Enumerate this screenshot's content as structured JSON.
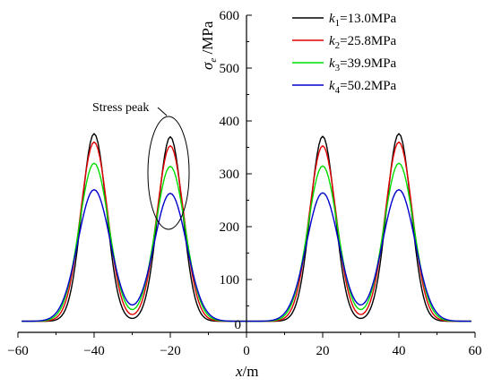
{
  "chart_data": {
    "type": "line",
    "xlabel": "x",
    "xunit": "/m",
    "ylabel": "σ",
    "ylabel_sub": "e",
    "yunit": " /MPa",
    "xlim": [
      -60,
      60
    ],
    "ylim": [
      0,
      600
    ],
    "xticks": [
      -60,
      -40,
      -20,
      0,
      20,
      40,
      60
    ],
    "yticks": [
      100,
      200,
      300,
      400,
      500,
      600
    ],
    "y_axis_at_x": 0,
    "legend_position": "top-right",
    "annotations": [
      {
        "text": "Stress peak",
        "x": -20,
        "y": 310
      }
    ],
    "baseline": 21,
    "peak_centers": [
      -40,
      -20,
      20,
      40
    ],
    "series": [
      {
        "name": "k",
        "sub": "1",
        "value_label": "=13.0MPa",
        "color": "#000000",
        "peaks": [
          376,
          370,
          371,
          376
        ]
      },
      {
        "name": "k",
        "sub": "2",
        "value_label": "=25.8MPa",
        "color": "#e00000",
        "peaks": [
          360,
          353,
          353,
          360
        ]
      },
      {
        "name": "k",
        "sub": "3",
        "value_label": "=39.9MPa",
        "color": "#00dd00",
        "peaks": [
          320,
          314,
          315,
          320
        ]
      },
      {
        "name": "k",
        "sub": "4",
        "value_label": "=50.2MPa",
        "color": "#0000cc",
        "peaks": [
          270,
          263,
          264,
          270
        ]
      }
    ]
  }
}
